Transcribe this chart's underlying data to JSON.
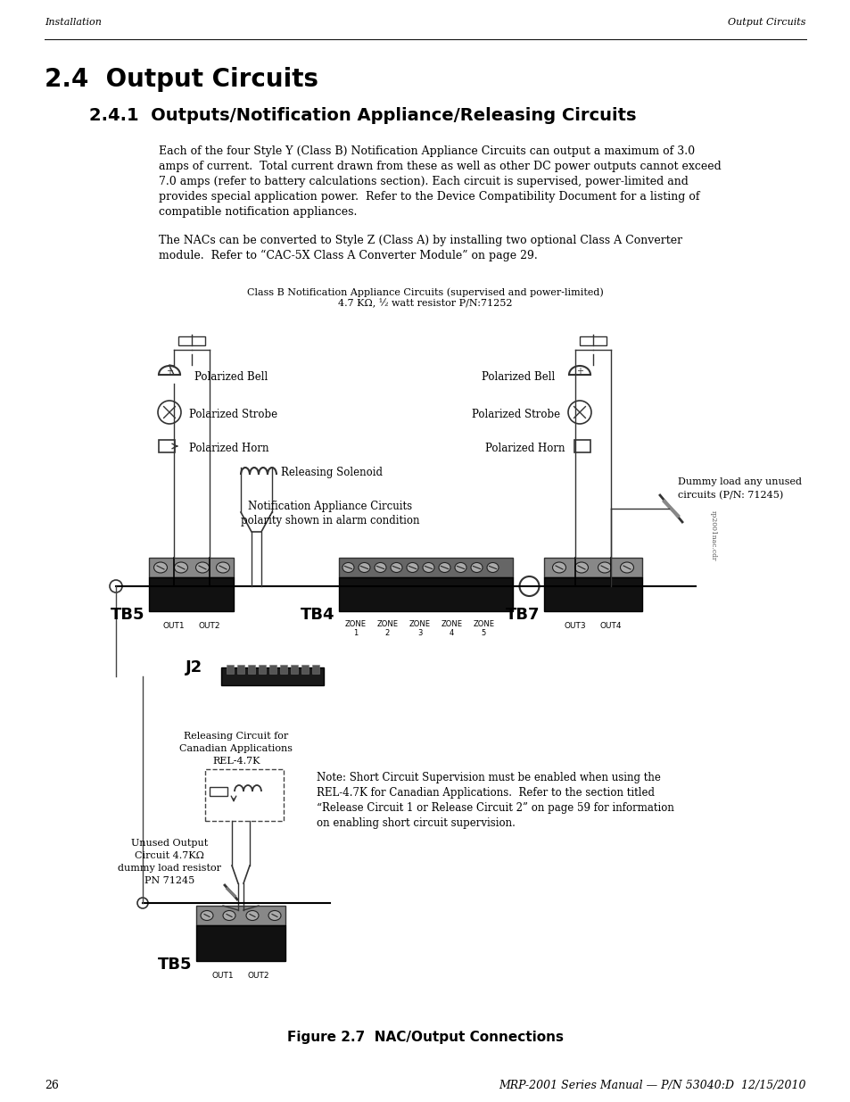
{
  "page_header_left": "Installation",
  "page_header_right": "Output Circuits",
  "section_title": "2.4  Output Circuits",
  "subsection_title": "2.4.1  Outputs/Notification Appliance/Releasing Circuits",
  "para1_lines": [
    "Each of the four Style Y (Class B) Notification Appliance Circuits can output a maximum of 3.0",
    "amps of current.  Total current drawn from these as well as other DC power outputs cannot exceed",
    "7.0 amps (refer to battery calculations section). Each circuit is supervised, power-limited and",
    "provides special application power.  Refer to the Device Compatibility Document for a listing of",
    "compatible notification appliances."
  ],
  "para2_lines": [
    "The NACs can be converted to Style Z (Class A) by installing two optional Class A Converter",
    "module.  Refer to “CAC-5X Class A Converter Module” on page 29."
  ],
  "diagram_caption_line1": "Class B Notification Appliance Circuits (supervised and power-limited)",
  "diagram_caption_line2": "4.7 KΩ, ½ watt resistor P/N:71252",
  "figure_caption": "Figure 2.7  NAC/Output Connections",
  "page_number": "26",
  "footer_right": "MRP-2001 Series Manual — P/N 53040:D  12/15/2010",
  "bg_color": "#ffffff",
  "text_color": "#000000",
  "note_text_lines": [
    "Note: Short Circuit Supervision must be enabled when using the",
    "REL-4.7K for Canadian Applications.  Refer to the section titled",
    "“Release Circuit 1 or Release Circuit 2” on page 59 for information",
    "on enabling short circuit supervision."
  ]
}
